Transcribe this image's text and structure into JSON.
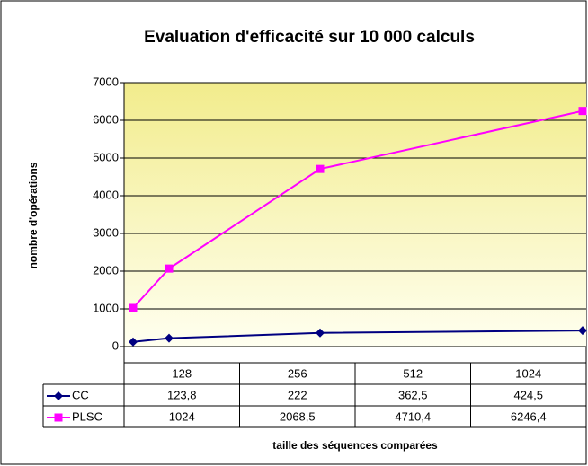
{
  "chart_data": {
    "type": "line",
    "title": "Evaluation d'efficacité sur 10 000 calculs",
    "y_label": "nombre d'opérations",
    "x_label": "taille des séquences comparées",
    "categories": [
      "128",
      "256",
      "512",
      "1024"
    ],
    "series": [
      {
        "name": "CC",
        "color": "#000080",
        "marker": "diamond",
        "values": [
          123.8,
          222,
          362.5,
          424.5
        ],
        "value_labels": [
          "123,8",
          "222",
          "362,5",
          "424,5"
        ]
      },
      {
        "name": "PLSC",
        "color": "#ff00ff",
        "marker": "square",
        "values": [
          1024,
          2068.5,
          4710.4,
          6246.4
        ],
        "value_labels": [
          "1024",
          "2068,5",
          "4710,4",
          "6246,4"
        ]
      }
    ],
    "ylim": [
      0,
      7000
    ],
    "yticks": [
      0,
      1000,
      2000,
      3000,
      4000,
      5000,
      6000,
      7000
    ],
    "grid": true
  }
}
